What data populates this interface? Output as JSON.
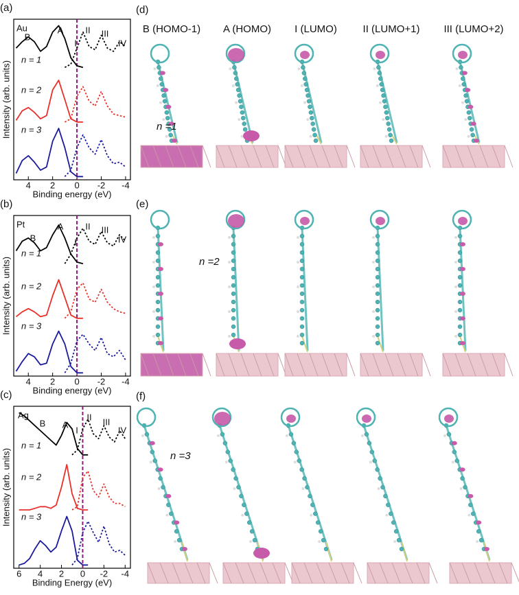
{
  "chart_data": [
    {
      "type": "line",
      "panel": "(a)",
      "xlabel": "Binding energy (eV)",
      "ylabel": "Intensity (arb. units)",
      "x": [
        5,
        4.5,
        4,
        3.5,
        3,
        2.5,
        2,
        1.5,
        1,
        0.5,
        0,
        -0.5,
        -1,
        -1.5,
        -2,
        -2.5,
        -3,
        -3.5,
        -4
      ],
      "xlim": [
        5.2,
        -4.4
      ],
      "xticks": [
        4,
        2,
        0,
        -2,
        -4
      ],
      "ylim": [
        0,
        10
      ],
      "vline": 0,
      "vline_color": "#8b1a7a",
      "annotations": [
        "Au",
        "B",
        "A",
        "I",
        "II",
        "III",
        "IV"
      ],
      "series": [
        {
          "name": "n = 1",
          "color": "#000000",
          "values": [
            8.2,
            8.6,
            8.9,
            8.6,
            8.0,
            8.3,
            9.2,
            9.6,
            8.8,
            7.6,
            7.1,
            7.0,
            null,
            null,
            null,
            null,
            null,
            null,
            null
          ],
          "unoccupied": [
            null,
            null,
            null,
            null,
            null,
            null,
            null,
            null,
            7.0,
            7.2,
            8.2,
            9.2,
            8.3,
            8.1,
            9.0,
            8.2,
            8.0,
            8.6,
            8.3
          ]
        },
        {
          "name": "n = 2",
          "color": "#e8302b",
          "values": [
            3.7,
            4.3,
            4.5,
            4.2,
            3.8,
            4.0,
            5.6,
            6.2,
            5.0,
            3.8,
            3.6,
            3.6,
            null,
            null,
            null,
            null,
            null,
            null,
            null
          ],
          "unoccupied": [
            null,
            null,
            null,
            null,
            null,
            null,
            null,
            null,
            3.6,
            3.8,
            5.2,
            5.8,
            4.9,
            4.6,
            5.5,
            4.6,
            4.1,
            4.0,
            3.9
          ]
        },
        {
          "name": "n = 3",
          "color": "#1a1a9c",
          "values": [
            0.4,
            1.2,
            1.5,
            1.1,
            0.6,
            0.8,
            2.4,
            3.2,
            2.0,
            0.5,
            0.2,
            0.2,
            null,
            null,
            null,
            null,
            null,
            null,
            null
          ],
          "unoccupied": [
            null,
            null,
            null,
            null,
            null,
            null,
            null,
            null,
            0.2,
            0.6,
            2.0,
            2.8,
            2.0,
            1.6,
            2.5,
            1.5,
            1.0,
            1.1,
            0.8
          ]
        }
      ]
    },
    {
      "type": "line",
      "panel": "(b)",
      "xlabel": "Binding energy (eV)",
      "ylabel": "Intensity (arb. units)",
      "x": [
        5,
        4.5,
        4,
        3.5,
        3,
        2.5,
        2,
        1.5,
        1,
        0.5,
        0,
        -0.5,
        -1,
        -1.5,
        -2,
        -2.5,
        -3,
        -3.5,
        -4
      ],
      "xlim": [
        5.2,
        -4.4
      ],
      "xticks": [
        4,
        2,
        0,
        -2,
        -4
      ],
      "ylim": [
        0,
        10
      ],
      "vline": 0,
      "vline_color": "#8b1a7a",
      "annotations": [
        "Pt",
        "B",
        "A",
        "I",
        "II",
        "III",
        "IV"
      ],
      "series": [
        {
          "name": "n = 1",
          "color": "#000000",
          "values": [
            7.8,
            8.4,
            8.6,
            8.3,
            7.8,
            8.0,
            8.8,
            9.4,
            8.6,
            7.6,
            7.1,
            7.0,
            null,
            null,
            null,
            null,
            null,
            null,
            null
          ],
          "unoccupied": [
            null,
            null,
            null,
            null,
            null,
            null,
            null,
            null,
            7.0,
            7.6,
            8.6,
            9.2,
            8.4,
            8.2,
            9.0,
            8.3,
            8.1,
            8.8,
            8.4
          ]
        },
        {
          "name": "n = 2",
          "color": "#e8302b",
          "values": [
            3.7,
            4.0,
            4.2,
            4.0,
            3.7,
            3.8,
            5.0,
            6.0,
            4.9,
            3.8,
            3.6,
            3.6,
            null,
            null,
            null,
            null,
            null,
            null,
            null
          ],
          "unoccupied": [
            null,
            null,
            null,
            null,
            null,
            null,
            null,
            null,
            3.6,
            4.0,
            5.4,
            5.8,
            4.8,
            4.6,
            5.4,
            4.6,
            4.2,
            4.0,
            3.9
          ]
        },
        {
          "name": "n = 3",
          "color": "#1a1a9c",
          "values": [
            0.3,
            0.9,
            1.4,
            1.2,
            0.7,
            0.8,
            2.0,
            2.8,
            2.0,
            0.6,
            0.2,
            0.2,
            null,
            null,
            null,
            null,
            null,
            null,
            null
          ],
          "unoccupied": [
            null,
            null,
            null,
            null,
            null,
            null,
            null,
            null,
            0.2,
            0.8,
            2.2,
            2.6,
            2.0,
            1.6,
            2.4,
            1.4,
            1.2,
            1.6,
            1.0
          ]
        }
      ]
    },
    {
      "type": "line",
      "panel": "(c)",
      "xlabel": "Binding Energy (eV)",
      "ylabel": "Intensity (arb. units)",
      "x": [
        6,
        5.5,
        5,
        4.5,
        4,
        3.5,
        3,
        2.5,
        2,
        1.5,
        1,
        0.5,
        0,
        -0.5,
        -1,
        -1.5,
        -2,
        -2.5,
        -3,
        -3.5,
        -4
      ],
      "xlim": [
        6.5,
        -4.5
      ],
      "xticks": [
        6,
        4,
        2,
        0,
        -2,
        -4
      ],
      "ylim": [
        0,
        10
      ],
      "vline": 0,
      "vline_color": "#8b1a7a",
      "annotations": [
        "Ag",
        "B",
        "A",
        "I",
        "II",
        "III",
        "IV"
      ],
      "series": [
        {
          "name": "n = 1",
          "color": "#000000",
          "values": [
            9.6,
            9.4,
            9.1,
            8.8,
            8.5,
            8.2,
            7.9,
            7.6,
            8.2,
            9.0,
            8.6,
            7.4,
            7.0,
            7.0,
            null,
            null,
            null,
            null,
            null,
            null,
            null
          ],
          "unoccupied": [
            null,
            null,
            null,
            null,
            null,
            null,
            null,
            null,
            null,
            null,
            7.0,
            7.3,
            8.6,
            9.2,
            8.3,
            8.0,
            8.8,
            8.1,
            7.8,
            8.5,
            8.0
          ]
        },
        {
          "name": "n = 2",
          "color": "#e8302b",
          "values": [
            3.6,
            3.6,
            3.6,
            3.7,
            3.8,
            3.8,
            3.7,
            3.9,
            5.0,
            6.4,
            4.6,
            3.7,
            3.6,
            3.6,
            null,
            null,
            null,
            null,
            null,
            null,
            null
          ],
          "unoccupied": [
            null,
            null,
            null,
            null,
            null,
            null,
            null,
            null,
            null,
            null,
            3.6,
            3.8,
            5.6,
            6.0,
            4.8,
            4.4,
            5.2,
            4.4,
            4.0,
            4.0,
            3.8
          ]
        },
        {
          "name": "n = 3",
          "color": "#1a1a9c",
          "values": [
            0.2,
            0.3,
            0.6,
            1.2,
            1.7,
            1.4,
            1.0,
            1.3,
            2.3,
            3.2,
            2.3,
            0.5,
            0.2,
            0.2,
            null,
            null,
            null,
            null,
            null,
            null,
            null
          ],
          "unoccupied": [
            null,
            null,
            null,
            null,
            null,
            null,
            null,
            null,
            null,
            null,
            0.2,
            0.6,
            2.2,
            2.9,
            2.2,
            1.6,
            2.6,
            1.5,
            1.0,
            1.1,
            0.8
          ]
        }
      ]
    }
  ],
  "orbitals": {
    "columns": [
      "B (HOMO-1)",
      "A (HOMO)",
      "I (LUMO)",
      "II (LUMO+1)",
      "III (LUMO+2)"
    ],
    "rows": [
      {
        "panel": "(d)",
        "label": "n =1"
      },
      {
        "panel": "(e)",
        "label": "n =2"
      },
      {
        "panel": "(f)",
        "label": "n =3"
      }
    ]
  }
}
